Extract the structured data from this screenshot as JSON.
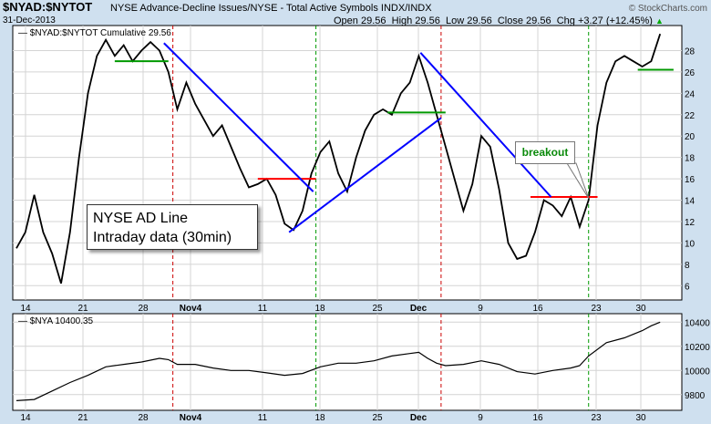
{
  "header": {
    "ticker": "$NYAD:$NYTOT",
    "description": "NYSE Advance-Decline Issues/NYSE - Total Active Symbols INDX/INDX",
    "date": "31-Dec-2013",
    "open": "Open 29.56",
    "high": "High 29.56",
    "low": "Low 29.56",
    "close": "Close 29.56",
    "chg": "Chg +3.27 (+12.45%)",
    "copyright": "© StockCharts.com",
    "up_arrow": "▲"
  },
  "annotations": {
    "box_line1": "NYSE AD Line",
    "box_line2": "Intraday data (30min)",
    "breakout": "breakout"
  },
  "chart_data": [
    {
      "type": "line",
      "legend": "$NYAD:$NYTOT  Cumulative 29.56",
      "x_tick_labels": [
        "14",
        "21",
        "28",
        "Nov4",
        "11",
        "18",
        "25",
        "Dec",
        "9",
        "16",
        "23",
        "30"
      ],
      "ylim": [
        5,
        30
      ],
      "y_ticks": [
        6,
        8,
        10,
        12,
        14,
        16,
        18,
        20,
        22,
        24,
        26,
        28
      ],
      "series": [
        {
          "color": "#000000",
          "values": [
            [
              0.0,
              9.5
            ],
            [
              1.0,
              11.0
            ],
            [
              2.0,
              14.5
            ],
            [
              3.0,
              11.0
            ],
            [
              4.0,
              9.0
            ],
            [
              5.0,
              6.2
            ],
            [
              6.0,
              11.0
            ],
            [
              7.0,
              18.0
            ],
            [
              8.0,
              24.0
            ],
            [
              9.0,
              27.5
            ],
            [
              10.0,
              29.0
            ],
            [
              11.0,
              27.5
            ],
            [
              12.0,
              28.5
            ],
            [
              13.0,
              27.0
            ],
            [
              14.0,
              28.0
            ],
            [
              15.0,
              28.8
            ],
            [
              16.0,
              28.0
            ],
            [
              17.0,
              26.0
            ],
            [
              18.0,
              22.5
            ],
            [
              19.0,
              25.0
            ],
            [
              20.0,
              23.0
            ],
            [
              21.0,
              21.5
            ],
            [
              22.0,
              20.0
            ],
            [
              23.0,
              21.0
            ],
            [
              24.0,
              19.0
            ],
            [
              25.0,
              17.0
            ],
            [
              26.0,
              15.2
            ],
            [
              27.0,
              15.5
            ],
            [
              28.0,
              16.0
            ],
            [
              29.0,
              14.5
            ],
            [
              30.0,
              11.8
            ],
            [
              31.0,
              11.2
            ],
            [
              32.0,
              13.0
            ],
            [
              33.0,
              16.5
            ],
            [
              34.0,
              18.5
            ],
            [
              35.0,
              19.5
            ],
            [
              36.0,
              16.5
            ],
            [
              37.0,
              14.8
            ],
            [
              38.0,
              18.0
            ],
            [
              39.0,
              20.5
            ],
            [
              40.0,
              22.0
            ],
            [
              41.0,
              22.5
            ],
            [
              42.0,
              22.0
            ],
            [
              43.0,
              24.0
            ],
            [
              44.0,
              25.0
            ],
            [
              45.0,
              27.5
            ],
            [
              46.0,
              25.0
            ],
            [
              47.0,
              22.0
            ],
            [
              48.0,
              19.0
            ],
            [
              49.0,
              16.0
            ],
            [
              50.0,
              13.0
            ],
            [
              51.0,
              15.5
            ],
            [
              52.0,
              20.0
            ],
            [
              53.0,
              19.0
            ],
            [
              54.0,
              15.0
            ],
            [
              55.0,
              10.0
            ],
            [
              56.0,
              8.5
            ],
            [
              57.0,
              8.8
            ],
            [
              58.0,
              11.0
            ],
            [
              59.0,
              14.0
            ],
            [
              60.0,
              13.5
            ],
            [
              61.0,
              12.5
            ],
            [
              62.0,
              14.3
            ],
            [
              63.0,
              11.5
            ],
            [
              64.0,
              14.0
            ],
            [
              65.0,
              21.0
            ],
            [
              66.0,
              25.0
            ],
            [
              67.0,
              27.0
            ],
            [
              68.0,
              27.5
            ],
            [
              69.0,
              27.0
            ],
            [
              70.0,
              26.5
            ],
            [
              71.0,
              27.0
            ],
            [
              72.0,
              29.56
            ]
          ]
        }
      ],
      "trendlines": [
        {
          "name": "trendline-down-1",
          "color": "#0000ff",
          "from": [
            16.5,
            28.7
          ],
          "to": [
            33.2,
            14.8
          ]
        },
        {
          "name": "trendline-up",
          "color": "#0000ff",
          "from": [
            30.5,
            11.0
          ],
          "to": [
            47.5,
            21.7
          ]
        },
        {
          "name": "trendline-down-2",
          "color": "#0000ff",
          "from": [
            45.2,
            27.8
          ],
          "to": [
            59.8,
            14.3
          ]
        }
      ],
      "support_lines": [
        {
          "name": "green-level-1",
          "color": "#009900",
          "from": [
            11.0,
            27.0
          ],
          "to": [
            17.0,
            27.0
          ]
        },
        {
          "name": "red-level-1",
          "color": "#ff0000",
          "from": [
            27.0,
            16.0
          ],
          "to": [
            33.5,
            16.0
          ]
        },
        {
          "name": "green-level-2",
          "color": "#009900",
          "from": [
            41.5,
            22.2
          ],
          "to": [
            48.0,
            22.2
          ]
        },
        {
          "name": "red-level-2",
          "color": "#ff0000",
          "from": [
            57.5,
            14.3
          ],
          "to": [
            65.0,
            14.3
          ]
        },
        {
          "name": "green-level-3",
          "color": "#009900",
          "from": [
            69.5,
            26.2
          ],
          "to": [
            73.5,
            26.2
          ]
        }
      ],
      "vertical_markers": [
        {
          "color": "#cc0000",
          "x": 17.5
        },
        {
          "color": "#009900",
          "x": 33.5
        },
        {
          "color": "#cc0000",
          "x": 47.5
        },
        {
          "color": "#009900",
          "x": 64.0
        }
      ]
    },
    {
      "type": "line",
      "legend": "$NYA 10400.35",
      "x_tick_labels": [
        "14",
        "21",
        "28",
        "Nov4",
        "11",
        "18",
        "25",
        "Dec",
        "9",
        "16",
        "23",
        "30"
      ],
      "ylim": [
        9700,
        10440
      ],
      "y_ticks": [
        9800,
        10000,
        10200,
        10400
      ],
      "series": [
        {
          "color": "#000000",
          "values": [
            [
              0,
              9750
            ],
            [
              2,
              9760
            ],
            [
              4,
              9830
            ],
            [
              6,
              9900
            ],
            [
              8,
              9960
            ],
            [
              10,
              10030
            ],
            [
              12,
              10050
            ],
            [
              14,
              10070
            ],
            [
              16,
              10100
            ],
            [
              17,
              10090
            ],
            [
              18,
              10050
            ],
            [
              20,
              10050
            ],
            [
              22,
              10020
            ],
            [
              24,
              10000
            ],
            [
              26,
              10000
            ],
            [
              28,
              9980
            ],
            [
              30,
              9960
            ],
            [
              32,
              9975
            ],
            [
              34,
              10030
            ],
            [
              36,
              10060
            ],
            [
              38,
              10060
            ],
            [
              40,
              10080
            ],
            [
              42,
              10120
            ],
            [
              44,
              10140
            ],
            [
              45,
              10150
            ],
            [
              46,
              10100
            ],
            [
              47,
              10060
            ],
            [
              48,
              10040
            ],
            [
              50,
              10050
            ],
            [
              52,
              10080
            ],
            [
              54,
              10050
            ],
            [
              56,
              9990
            ],
            [
              58,
              9970
            ],
            [
              60,
              10000
            ],
            [
              62,
              10020
            ],
            [
              63,
              10040
            ],
            [
              64,
              10120
            ],
            [
              66,
              10230
            ],
            [
              68,
              10270
            ],
            [
              70,
              10330
            ],
            [
              71,
              10370
            ],
            [
              72,
              10400
            ]
          ]
        }
      ],
      "vertical_markers": [
        {
          "color": "#cc0000",
          "x": 17.5
        },
        {
          "color": "#009900",
          "x": 33.5
        },
        {
          "color": "#cc0000",
          "x": 47.5
        },
        {
          "color": "#009900",
          "x": 64.0
        }
      ]
    }
  ]
}
